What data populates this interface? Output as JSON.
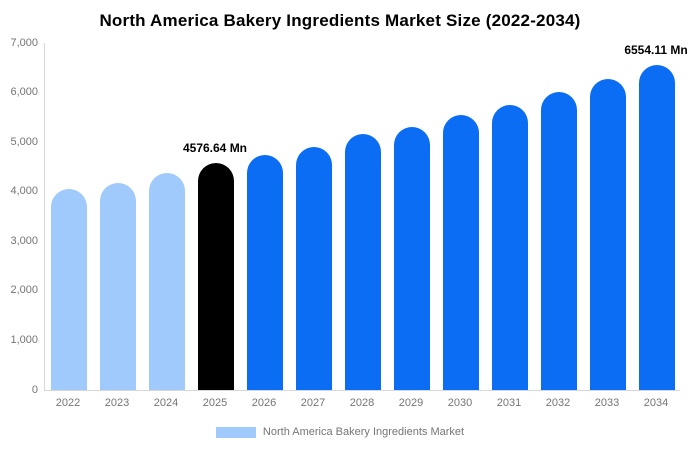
{
  "title": "North America Bakery Ingredients Market Size (2022-2034)",
  "colors": {
    "historical_bar": "#9FCAFB",
    "base_year_bar": "#000000",
    "forecast_bar": "#0A6DF4",
    "axis_line": "#D6D6D6",
    "tick_text": "#757575",
    "title_text": "#000000",
    "background": "#FFFFFF"
  },
  "chart_data": {
    "type": "bar",
    "title": "North America Bakery Ingredients Market Size (2022-2034)",
    "unit": "Mn",
    "categories": [
      "2022",
      "2023",
      "2024",
      "2025",
      "2026",
      "2027",
      "2028",
      "2029",
      "2030",
      "2031",
      "2032",
      "2033",
      "2034"
    ],
    "values": [
      4050,
      4180,
      4375,
      4576.64,
      4740,
      4895,
      5155,
      5310,
      5545,
      5750,
      6005,
      6265,
      6554.11
    ],
    "roles": [
      "historical",
      "historical",
      "historical",
      "base_year",
      "forecast",
      "forecast",
      "forecast",
      "forecast",
      "forecast",
      "forecast",
      "forecast",
      "forecast",
      "forecast"
    ],
    "value_labels": [
      {
        "category": "2025",
        "text": "4576.64 Mn"
      },
      {
        "category": "2034",
        "text": "6554.11 Mn"
      }
    ],
    "ylim": [
      0,
      7000
    ],
    "y_tick_labels": [
      "7,000",
      "6,000",
      "5,000",
      "4,000",
      "3,000",
      "2,000",
      "1,000",
      "0"
    ],
    "grid": false,
    "legend_position": "bottom",
    "legend": [
      {
        "label": "North America Bakery Ingredients Market",
        "swatch_color": "#9FCAFB"
      }
    ]
  }
}
